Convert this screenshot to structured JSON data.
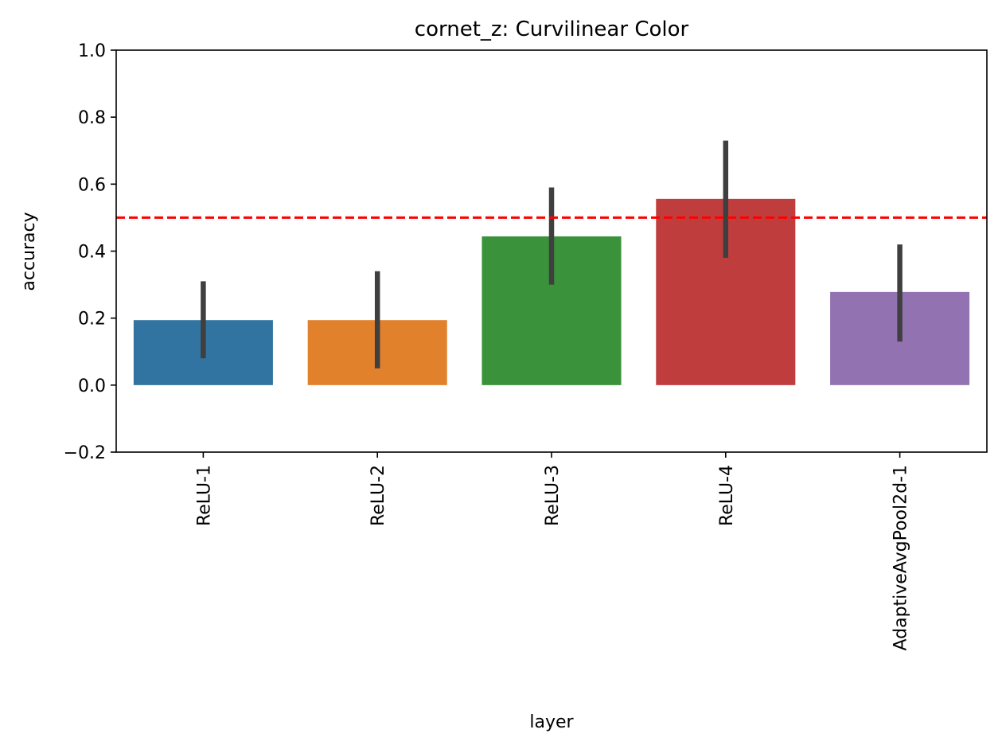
{
  "chart_data": {
    "type": "bar",
    "title": "cornet_z: Curvilinear Color",
    "xlabel": "layer",
    "ylabel": "accuracy",
    "ylim": [
      -0.2,
      1.0
    ],
    "yticks": [
      -0.2,
      0.0,
      0.2,
      0.4,
      0.6,
      0.8,
      1.0
    ],
    "ytick_labels": [
      "−0.2",
      "0.0",
      "0.2",
      "0.4",
      "0.6",
      "0.8",
      "1.0"
    ],
    "grid": false,
    "categories": [
      "ReLU-1",
      "ReLU-2",
      "ReLU-3",
      "ReLU-4",
      "AdaptiveAvgPool2d-1"
    ],
    "values": [
      0.194,
      0.194,
      0.444,
      0.556,
      0.278
    ],
    "error_low": [
      0.08,
      0.05,
      0.3,
      0.38,
      0.13
    ],
    "error_high": [
      0.31,
      0.34,
      0.59,
      0.73,
      0.42
    ],
    "colors": [
      "#3274a1",
      "#e1812c",
      "#3a923a",
      "#c03d3e",
      "#9372b2"
    ],
    "error_color": "#3f3f3f",
    "reference_line": {
      "y": 0.5,
      "color": "#ff0000",
      "style": "dashed"
    }
  }
}
